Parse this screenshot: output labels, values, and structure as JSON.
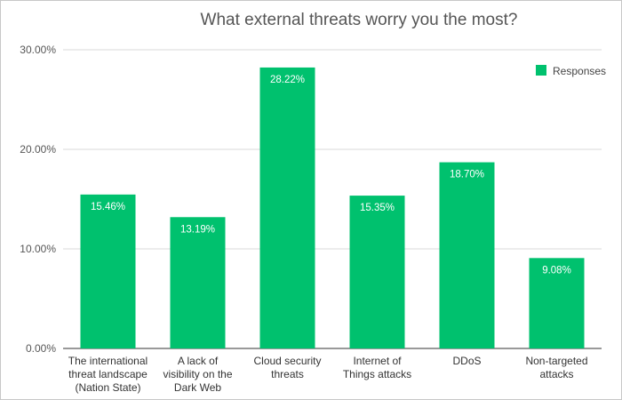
{
  "chart_data": {
    "type": "bar",
    "title": "What external threats worry you the most?",
    "xlabel": "",
    "ylabel": "",
    "categories": [
      [
        "The international",
        "threat landscape",
        "(Nation State)"
      ],
      [
        "A lack of",
        "visibility on the",
        "Dark Web"
      ],
      [
        "Cloud security",
        "threats"
      ],
      [
        "Internet of",
        "Things attacks"
      ],
      [
        "DDoS"
      ],
      [
        "Non-targeted",
        "attacks"
      ]
    ],
    "series": [
      {
        "name": "Responses",
        "values": [
          15.46,
          13.19,
          28.22,
          15.35,
          18.7,
          9.08
        ],
        "labels": [
          "15.46%",
          "13.19%",
          "28.22%",
          "15.35%",
          "18.70%",
          "9.08%"
        ],
        "color": "#00c16e"
      }
    ],
    "ylim": [
      0,
      30
    ],
    "yticks": [
      0,
      10,
      20,
      30
    ],
    "ytick_labels": [
      "0.00%",
      "10.00%",
      "20.00%",
      "30.00%"
    ],
    "grid": true,
    "legend": "top-right"
  }
}
